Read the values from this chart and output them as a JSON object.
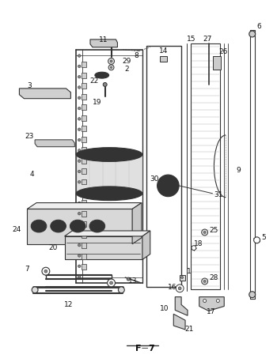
{
  "bg_color": "#ffffff",
  "line_color": "#333333",
  "label_color": "#111111",
  "fig_width": 3.5,
  "fig_height": 4.58,
  "dpi": 100,
  "footer_label": "F—7"
}
